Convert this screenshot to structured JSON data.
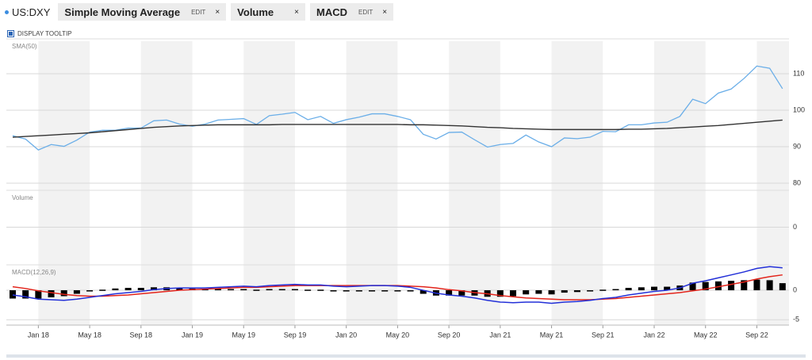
{
  "toolbar": {
    "symbol": "US:DXY",
    "indicators": [
      {
        "name": "Simple Moving Average",
        "edit": "EDIT",
        "close": "×"
      },
      {
        "name": "Volume",
        "close": "×"
      },
      {
        "name": "MACD",
        "edit": "EDIT",
        "close": "×"
      }
    ],
    "tooltip": "DISPLAY TOOLTIP"
  },
  "chart_data": [
    {
      "type": "line",
      "label": "SMA(50)",
      "ylim": [
        78.7,
        118.9
      ],
      "yticks": [
        80,
        90,
        100,
        110
      ],
      "grid": true,
      "series": [
        {
          "color": "#6aaee8",
          "values": [
            93.0,
            92.1,
            89.1,
            90.6,
            90.1,
            91.8,
            94.0,
            94.5,
            94.5,
            95.1,
            95.1,
            97.1,
            97.3,
            96.2,
            95.6,
            96.2,
            97.3,
            97.5,
            97.7,
            96.1,
            98.5,
            98.9,
            99.4,
            97.4,
            98.3,
            96.4,
            97.4,
            98.1,
            99.0,
            99.0,
            98.3,
            97.4,
            93.4,
            92.1,
            93.9,
            94.0,
            91.9,
            89.9,
            90.6,
            90.9,
            93.2,
            91.3,
            90.0,
            92.4,
            92.2,
            92.6,
            94.2,
            94.1,
            96.0,
            96.0,
            96.5,
            96.7,
            98.3,
            103.0,
            101.8,
            104.7,
            105.8,
            108.7,
            112.1,
            111.5,
            105.9
          ]
        },
        {
          "color": "#333333",
          "values": [
            92.6,
            92.8,
            93.0,
            93.2,
            93.4,
            93.6,
            93.8,
            94.1,
            94.4,
            94.7,
            95.0,
            95.3,
            95.5,
            95.7,
            95.8,
            95.9,
            96.0,
            96.0,
            96.0,
            96.0,
            96.0,
            96.1,
            96.1,
            96.1,
            96.1,
            96.1,
            96.1,
            96.1,
            96.1,
            96.1,
            96.1,
            96.0,
            96.0,
            95.9,
            95.8,
            95.7,
            95.5,
            95.3,
            95.2,
            95.0,
            94.9,
            94.8,
            94.7,
            94.7,
            94.7,
            94.7,
            94.7,
            94.7,
            94.8,
            94.8,
            94.9,
            95.0,
            95.2,
            95.4,
            95.6,
            95.8,
            96.1,
            96.4,
            96.7,
            97.0,
            97.3
          ]
        }
      ]
    },
    {
      "type": "bar",
      "label": "Volume",
      "ylim": [
        -1,
        1
      ],
      "yticks": [
        0
      ],
      "grid": true
    },
    {
      "type": "macd",
      "label": "MACD(12,26,9)",
      "ylim": [
        -5.9,
        3.9
      ],
      "yticks": [
        0,
        -5
      ],
      "grid": true,
      "categories": [
        null,
        null,
        "Jan 18",
        null,
        null,
        null,
        "May 18",
        null,
        null,
        null,
        "Sep 18",
        null,
        null,
        null,
        "Jan 19",
        null,
        null,
        null,
        "May 19",
        null,
        null,
        null,
        "Sep 19",
        null,
        null,
        null,
        "Jan 20",
        null,
        null,
        null,
        "May 20",
        null,
        null,
        null,
        "Sep 20",
        null,
        null,
        null,
        "Jan 21",
        null,
        null,
        null,
        "May 21",
        null,
        null,
        null,
        "Sep 21",
        null,
        null,
        null,
        "Jan 22",
        null,
        null,
        null,
        "May 22",
        null,
        null,
        null,
        "Sep 22",
        null,
        null
      ],
      "series": [
        {
          "kind": "histogram",
          "color": "#000000",
          "values": [
            -1.4,
            -1.4,
            -1.4,
            -1.2,
            -1.0,
            -0.6,
            -0.2,
            0.1,
            0.3,
            0.4,
            0.4,
            0.5,
            0.5,
            0.4,
            0.3,
            0.2,
            0.2,
            0.2,
            0.2,
            0.1,
            0.2,
            0.2,
            0.2,
            0.1,
            0.1,
            -0.1,
            -0.2,
            -0.1,
            0,
            0,
            -0.1,
            -0.2,
            -0.6,
            -0.9,
            -0.9,
            -0.9,
            -0.9,
            -1.1,
            -1.1,
            -1.0,
            -0.7,
            -0.6,
            -0.7,
            -0.4,
            -0.3,
            -0.1,
            0.1,
            0.2,
            0.4,
            0.5,
            0.6,
            0.6,
            0.8,
            1.3,
            1.4,
            1.5,
            1.6,
            1.7,
            1.8,
            1.7,
            1.2
          ]
        },
        {
          "kind": "line",
          "color": "#e3241b",
          "values": [
            0.6,
            0.3,
            -0.1,
            -0.4,
            -0.7,
            -0.9,
            -1.0,
            -1.0,
            -0.9,
            -0.8,
            -0.6,
            -0.4,
            -0.2,
            0.0,
            0.1,
            0.2,
            0.3,
            0.4,
            0.5,
            0.5,
            0.6,
            0.7,
            0.8,
            0.8,
            0.8,
            0.8,
            0.8,
            0.8,
            0.8,
            0.8,
            0.8,
            0.7,
            0.6,
            0.4,
            0.1,
            -0.1,
            -0.4,
            -0.6,
            -0.9,
            -1.1,
            -1.3,
            -1.4,
            -1.5,
            -1.6,
            -1.6,
            -1.6,
            -1.5,
            -1.4,
            -1.2,
            -1.0,
            -0.8,
            -0.6,
            -0.4,
            -0.1,
            0.2,
            0.6,
            1.0,
            1.4,
            1.9,
            2.3,
            2.6
          ]
        },
        {
          "kind": "line",
          "color": "#2330d8",
          "values": [
            -0.8,
            -1.1,
            -1.5,
            -1.6,
            -1.7,
            -1.5,
            -1.2,
            -0.9,
            -0.6,
            -0.4,
            -0.2,
            0.1,
            0.3,
            0.4,
            0.4,
            0.4,
            0.5,
            0.6,
            0.7,
            0.6,
            0.8,
            0.9,
            1.0,
            0.9,
            0.9,
            0.7,
            0.6,
            0.7,
            0.8,
            0.8,
            0.7,
            0.5,
            0.0,
            -0.5,
            -0.8,
            -1.0,
            -1.3,
            -1.7,
            -2.0,
            -2.1,
            -2.0,
            -2.0,
            -2.2,
            -2.0,
            -1.9,
            -1.7,
            -1.4,
            -1.2,
            -0.8,
            -0.5,
            -0.2,
            0.0,
            0.4,
            1.2,
            1.6,
            2.1,
            2.6,
            3.1,
            3.7,
            4.0,
            3.8
          ]
        }
      ]
    }
  ]
}
